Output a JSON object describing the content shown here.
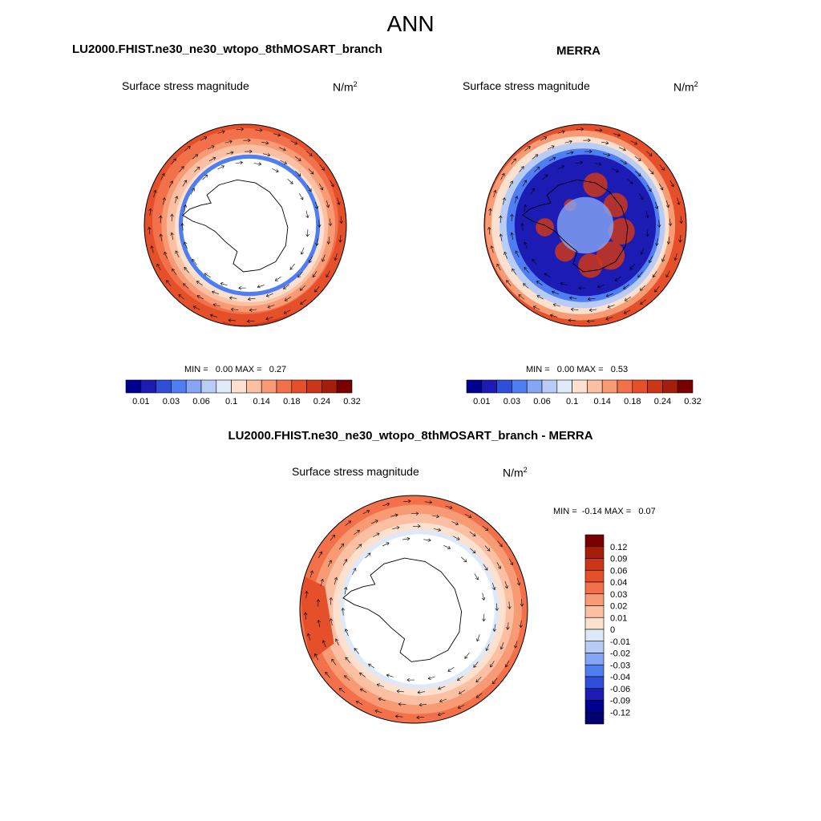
{
  "page": {
    "season": "ANN",
    "units_base": "N/m",
    "units_exp": "2"
  },
  "panels": [
    {
      "title": "LU2000.FHIST.ne30_ne30_wtopo_8thMOSART_branch",
      "variable": "Surface stress magnitude",
      "minmax": "MIN =   0.00 MAX =   0.27"
    },
    {
      "title": "MERRA",
      "variable": "Surface stress magnitude",
      "minmax": "MIN =   0.00 MAX =   0.53"
    },
    {
      "title": "LU2000.FHIST.ne30_ne30_wtopo_8thMOSART_branch - MERRA",
      "variable": "Surface stress magnitude",
      "minmax": "MIN =  -0.14 MAX =   0.07"
    }
  ],
  "chart_data": [
    {
      "type": "heatmap",
      "projection": "south-polar-stereographic",
      "title": "LU2000.FHIST.ne30_ne30_wtopo_8thMOSART_branch",
      "field": "Surface stress magnitude",
      "units": "N/m2",
      "min": 0.0,
      "max": 0.27,
      "colorbar_levels": [
        0.01,
        0.03,
        0.06,
        0.1,
        0.14,
        0.18,
        0.24,
        0.32
      ],
      "colorbar_labels": [
        "0.01",
        "0.03",
        "0.06",
        "0.1",
        "0.14",
        "0.18",
        "0.24",
        "0.32"
      ],
      "colorbar_colors": [
        "#00008f",
        "#1c1cb4",
        "#2f4fd9",
        "#4f7df2",
        "#86a6f5",
        "#b9ccf5",
        "#e1ebf8",
        "#fde0cd",
        "#fbc0a3",
        "#f89a74",
        "#f2714a",
        "#e5502b",
        "#cc3618",
        "#a51e0b",
        "#7a0000"
      ],
      "colorbar_orientation": "horizontal"
    },
    {
      "type": "heatmap",
      "projection": "south-polar-stereographic",
      "title": "MERRA",
      "field": "Surface stress magnitude",
      "units": "N/m2",
      "min": 0.0,
      "max": 0.53,
      "colorbar_levels": [
        0.01,
        0.03,
        0.06,
        0.1,
        0.14,
        0.18,
        0.24,
        0.32
      ],
      "colorbar_labels": [
        "0.01",
        "0.03",
        "0.06",
        "0.1",
        "0.14",
        "0.18",
        "0.24",
        "0.32"
      ],
      "colorbar_colors": [
        "#00008f",
        "#1c1cb4",
        "#2f4fd9",
        "#4f7df2",
        "#86a6f5",
        "#b9ccf5",
        "#e1ebf8",
        "#fde0cd",
        "#fbc0a3",
        "#f89a74",
        "#f2714a",
        "#e5502b",
        "#cc3618",
        "#a51e0b",
        "#7a0000"
      ],
      "colorbar_orientation": "horizontal"
    },
    {
      "type": "heatmap",
      "projection": "south-polar-stereographic",
      "title": "LU2000.FHIST.ne30_ne30_wtopo_8thMOSART_branch - MERRA",
      "field": "Surface stress magnitude",
      "units": "N/m2",
      "min": -0.14,
      "max": 0.07,
      "colorbar_levels": [
        0.12,
        0.09,
        0.06,
        0.04,
        0.03,
        0.02,
        0.01,
        0,
        -0.01,
        -0.02,
        -0.03,
        -0.04,
        -0.06,
        -0.09,
        -0.12
      ],
      "colorbar_labels": [
        "0.12",
        "0.09",
        "0.06",
        "0.04",
        "0.03",
        "0.02",
        "0.01",
        "0",
        "-0.01",
        "-0.02",
        "-0.03",
        "-0.04",
        "-0.06",
        "-0.09",
        "-0.12"
      ],
      "colorbar_colors": [
        "#7a0000",
        "#a51e0b",
        "#cc3618",
        "#e5502b",
        "#f2714a",
        "#f89a74",
        "#fbc0a3",
        "#fde0cd",
        "#dde8f8",
        "#b9ccf5",
        "#86a6f5",
        "#4f7df2",
        "#2f4fd9",
        "#1c1cb4",
        "#00008f",
        "#000070"
      ],
      "colorbar_orientation": "vertical"
    }
  ]
}
